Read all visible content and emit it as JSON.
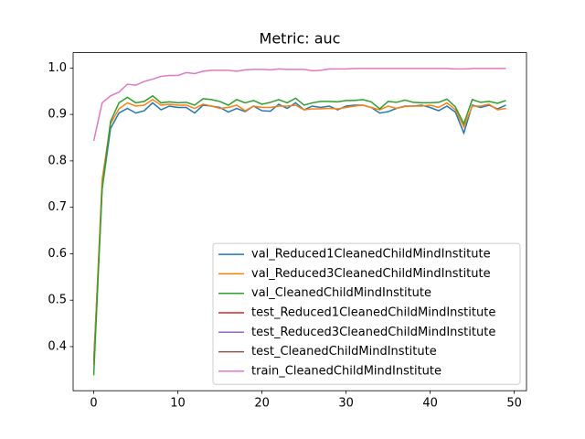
{
  "chart_data": {
    "type": "line",
    "title": "Metric: auc",
    "x": [
      0,
      1,
      2,
      3,
      4,
      5,
      6,
      7,
      8,
      9,
      10,
      11,
      12,
      13,
      14,
      15,
      16,
      17,
      18,
      19,
      20,
      21,
      22,
      23,
      24,
      25,
      26,
      27,
      28,
      29,
      30,
      31,
      32,
      33,
      34,
      35,
      36,
      37,
      38,
      39,
      40,
      41,
      42,
      43,
      44,
      45,
      46,
      47,
      48,
      49
    ],
    "series": [
      {
        "name": "val_Reduced1CleanedChildMindInstitute",
        "color": "#1f77b4",
        "values": [
          0.37,
          0.74,
          0.87,
          0.903,
          0.913,
          0.903,
          0.908,
          0.925,
          0.91,
          0.918,
          0.915,
          0.915,
          0.903,
          0.92,
          0.918,
          0.915,
          0.905,
          0.913,
          0.906,
          0.918,
          0.908,
          0.907,
          0.922,
          0.913,
          0.925,
          0.91,
          0.918,
          0.915,
          0.918,
          0.91,
          0.918,
          0.92,
          0.92,
          0.915,
          0.903,
          0.906,
          0.913,
          0.918,
          0.918,
          0.92,
          0.915,
          0.908,
          0.918,
          0.905,
          0.86,
          0.92,
          0.915,
          0.92,
          0.912,
          0.92
        ]
      },
      {
        "name": "val_Reduced3CleanedChildMindInstitute",
        "color": "#ff7f0e",
        "values": [
          0.36,
          0.76,
          0.88,
          0.912,
          0.925,
          0.918,
          0.92,
          0.932,
          0.92,
          0.922,
          0.92,
          0.92,
          0.913,
          0.922,
          0.918,
          0.913,
          0.915,
          0.92,
          0.908,
          0.918,
          0.915,
          0.915,
          0.918,
          0.918,
          0.92,
          0.91,
          0.912,
          0.912,
          0.913,
          0.912,
          0.915,
          0.918,
          0.92,
          0.915,
          0.91,
          0.918,
          0.913,
          0.917,
          0.918,
          0.918,
          0.92,
          0.915,
          0.925,
          0.91,
          0.873,
          0.918,
          0.918,
          0.922,
          0.91,
          0.913
        ]
      },
      {
        "name": "val_CleanedChildMindInstitute",
        "color": "#2ca02c",
        "values": [
          0.338,
          0.74,
          0.885,
          0.925,
          0.937,
          0.925,
          0.928,
          0.94,
          0.925,
          0.927,
          0.925,
          0.926,
          0.92,
          0.934,
          0.932,
          0.928,
          0.92,
          0.932,
          0.925,
          0.93,
          0.922,
          0.926,
          0.932,
          0.925,
          0.935,
          0.92,
          0.925,
          0.928,
          0.928,
          0.927,
          0.93,
          0.93,
          0.932,
          0.927,
          0.912,
          0.928,
          0.926,
          0.931,
          0.926,
          0.925,
          0.925,
          0.926,
          0.933,
          0.916,
          0.88,
          0.932,
          0.926,
          0.928,
          0.924,
          0.93
        ]
      },
      {
        "name": "test_Reduced1CleanedChildMindInstitute",
        "color": "#d62728",
        "values": [
          null,
          null,
          null,
          null,
          null,
          null,
          null,
          null,
          null,
          null,
          null,
          null,
          null,
          null,
          null,
          null,
          null,
          null,
          null,
          null,
          null,
          null,
          null,
          null,
          null,
          null,
          null,
          null,
          null,
          null,
          null,
          null,
          null,
          null,
          null,
          null,
          null,
          null,
          null,
          null,
          null,
          null,
          null,
          null,
          null,
          null,
          null,
          null,
          null,
          null
        ]
      },
      {
        "name": "test_Reduced3CleanedChildMindInstitute",
        "color": "#9467bd",
        "values": [
          null,
          null,
          null,
          null,
          null,
          null,
          null,
          null,
          null,
          null,
          null,
          null,
          null,
          null,
          null,
          null,
          null,
          null,
          null,
          null,
          null,
          null,
          null,
          null,
          null,
          null,
          null,
          null,
          null,
          null,
          null,
          null,
          null,
          null,
          null,
          null,
          null,
          null,
          null,
          null,
          null,
          null,
          null,
          null,
          null,
          null,
          null,
          null,
          null,
          null
        ]
      },
      {
        "name": "test_CleanedChildMindInstitute",
        "color": "#8c564b",
        "values": [
          null,
          null,
          null,
          null,
          null,
          null,
          null,
          null,
          null,
          null,
          null,
          null,
          null,
          null,
          null,
          null,
          null,
          null,
          null,
          null,
          null,
          null,
          null,
          null,
          null,
          null,
          null,
          null,
          null,
          null,
          null,
          null,
          null,
          null,
          null,
          null,
          null,
          null,
          null,
          null,
          null,
          null,
          null,
          null,
          null,
          null,
          null,
          null,
          null,
          null
        ]
      },
      {
        "name": "train_CleanedChildMindInstitute",
        "color": "#e377c2",
        "values": [
          0.843,
          0.925,
          0.94,
          0.948,
          0.965,
          0.963,
          0.971,
          0.976,
          0.982,
          0.984,
          0.984,
          0.99,
          0.988,
          0.993,
          0.995,
          0.995,
          0.995,
          0.993,
          0.996,
          0.997,
          0.997,
          0.996,
          0.998,
          0.997,
          0.997,
          0.997,
          0.994,
          0.995,
          0.998,
          0.998,
          0.998,
          0.999,
          0.999,
          0.999,
          0.999,
          0.999,
          0.999,
          0.999,
          0.999,
          0.999,
          0.999,
          0.999,
          0.999,
          0.998,
          0.998,
          0.999,
          0.999,
          0.999,
          0.999,
          0.999
        ]
      }
    ],
    "xlim": [
      -2.45,
      51.45
    ],
    "ylim": [
      0.305,
      1.033
    ],
    "xticks": [
      0,
      10,
      20,
      30,
      40,
      50
    ],
    "yticks": [
      0.4,
      0.5,
      0.6,
      0.7,
      0.8,
      0.9,
      {
        "value": 1,
        "label": "1.0"
      }
    ],
    "legend": "lower right"
  }
}
